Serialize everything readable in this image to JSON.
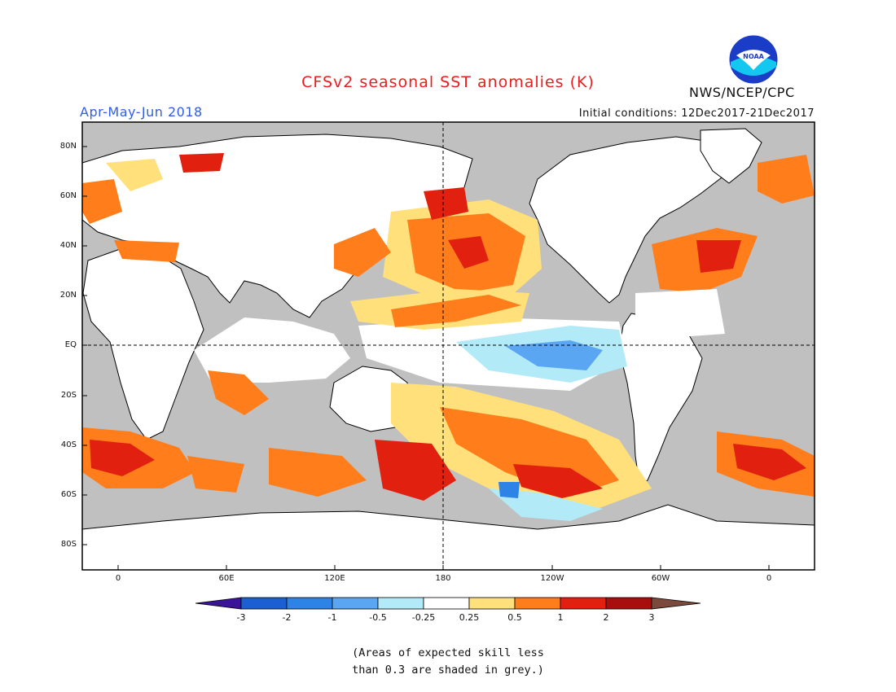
{
  "header": {
    "title": "CFSv2 seasonal SST anomalies (K)",
    "season": "Apr-May-Jun 2018",
    "initial_conditions": "Initial conditions: 12Dec2017-21Dec2017",
    "agency": "NWS/NCEP/CPC",
    "logo_text": "NOAA"
  },
  "map": {
    "lat_labels": [
      "80N",
      "60N",
      "40N",
      "20N",
      "EQ",
      "20S",
      "40S",
      "60S",
      "80S"
    ],
    "lon_labels": [
      "0",
      "60E",
      "120E",
      "180",
      "120W",
      "60W",
      "0"
    ],
    "colors": {
      "grey_mask": "#c0c0c0",
      "ocean_neutral": "#ffffff",
      "land": "#ffffff",
      "coast": "#000000"
    }
  },
  "colorbar": {
    "labels": [
      "-3",
      "-2",
      "-1",
      "-0.5",
      "-0.25",
      "0.25",
      "0.5",
      "1",
      "2",
      "3"
    ],
    "colors": [
      "#3a1499",
      "#1b5fd3",
      "#2e83e6",
      "#5aa6f2",
      "#b2ebf7",
      "#ffffff",
      "#ffe07a",
      "#ff7d1a",
      "#e1200f",
      "#a80e0e",
      "#7a4b3c"
    ]
  },
  "note": {
    "line1": "(Areas of expected skill less",
    "line2": "than 0.3 are shaded in grey.)"
  }
}
